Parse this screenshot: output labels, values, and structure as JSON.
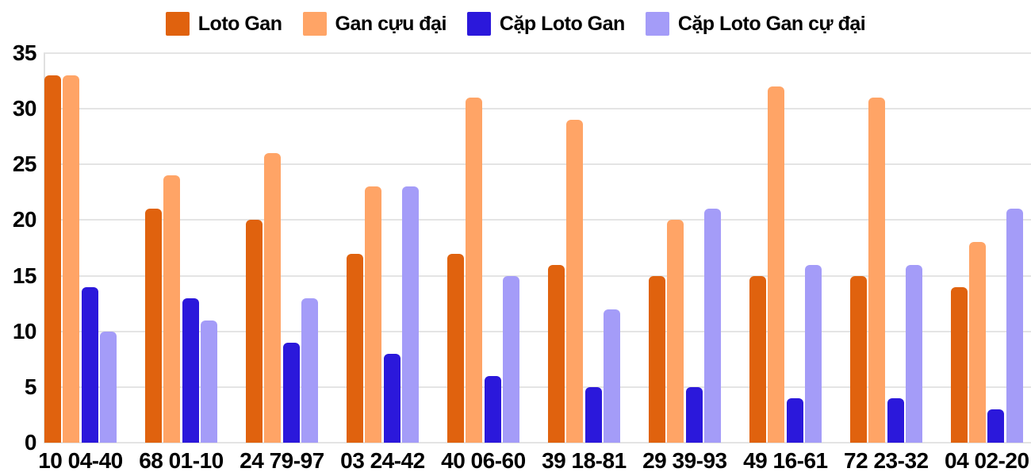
{
  "page": {
    "background": "#ffffff",
    "text_color": "#000000"
  },
  "chart_data": {
    "type": "bar",
    "title": "",
    "xlabel": "",
    "ylabel": "",
    "categories": [
      "10 04-40",
      "68 01-10",
      "24 79-97",
      "03 24-42",
      "40 06-60",
      "39 18-81",
      "29 39-93",
      "49 16-61",
      "72 23-32",
      "04 02-20"
    ],
    "series": [
      {
        "name": "Loto Gan",
        "color": "#E0620E",
        "values": [
          33,
          21,
          20,
          17,
          17,
          16,
          15,
          15,
          15,
          14
        ]
      },
      {
        "name": "Gan cựu đại",
        "color": "#FFA466",
        "values": [
          33,
          24,
          26,
          23,
          31,
          29,
          20,
          32,
          31,
          18
        ]
      },
      {
        "name": "Cặp Loto Gan",
        "color": "#2B18DB",
        "values": [
          14,
          13,
          9,
          8,
          6,
          5,
          5,
          4,
          4,
          3
        ]
      },
      {
        "name": "Cặp Loto Gan cự đại",
        "color": "#A49CF8",
        "values": [
          10,
          11,
          13,
          23,
          15,
          12,
          21,
          16,
          16,
          21
        ]
      }
    ],
    "ylim": [
      0,
      35
    ],
    "yticks": [
      0,
      5,
      10,
      15,
      20,
      25,
      30,
      35
    ],
    "grid": true,
    "grid_color": "#e4e4e4",
    "legend_position": "top"
  }
}
